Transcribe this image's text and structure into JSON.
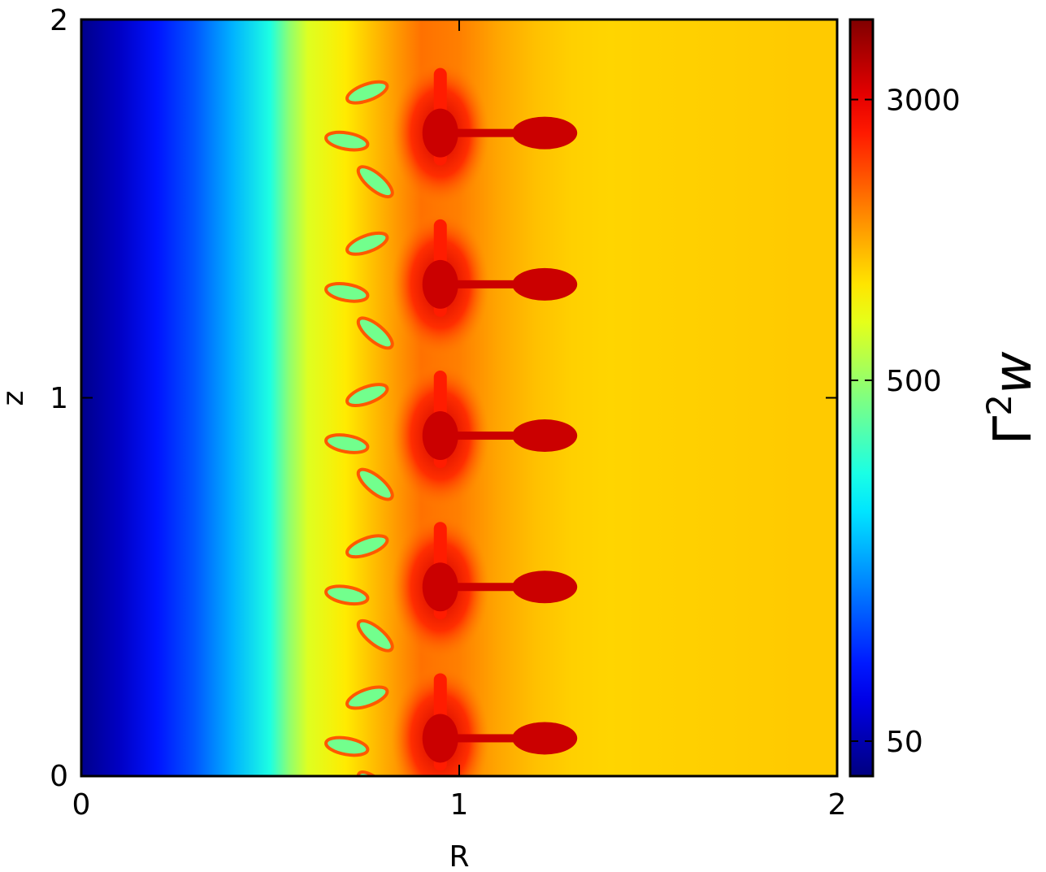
{
  "chart_data": {
    "type": "heatmap",
    "title": "",
    "xlabel": "R",
    "ylabel": "z",
    "xlim": [
      0,
      2
    ],
    "ylim": [
      0,
      2
    ],
    "x_ticks": [
      "0",
      "1",
      "2"
    ],
    "y_ticks": [
      "0",
      "1",
      "2"
    ],
    "colormap": "jet",
    "colorbar": {
      "label": "Γ²w",
      "label_base": "Γ",
      "label_exp": "2",
      "label_var": "w",
      "scale": "log",
      "range": [
        40,
        5000
      ],
      "ticks": [
        {
          "value": 50,
          "label": "50"
        },
        {
          "value": 500,
          "label": "500"
        },
        {
          "value": 3000,
          "label": "3000"
        }
      ]
    },
    "radial_profile": {
      "R": [
        0.0,
        0.1,
        0.2,
        0.3,
        0.4,
        0.5,
        0.55,
        0.6,
        0.7,
        0.8,
        0.9,
        1.0,
        1.1,
        1.2,
        1.3,
        1.4,
        1.5,
        1.6,
        1.7,
        1.8,
        1.9,
        2.0
      ],
      "value": [
        42,
        55,
        80,
        110,
        170,
        280,
        480,
        700,
        900,
        1200,
        1600,
        1500,
        1250,
        1100,
        1020,
        1000,
        1010,
        1020,
        1030,
        1040,
        1050,
        1050
      ]
    },
    "structures": {
      "description_values": "high Γ²w red plumes",
      "z_positions": [
        0.1,
        0.5,
        0.9,
        1.3,
        1.7
      ],
      "core_R": 0.95,
      "finger_tip_R": 1.28,
      "peak_value": 3500
    }
  }
}
